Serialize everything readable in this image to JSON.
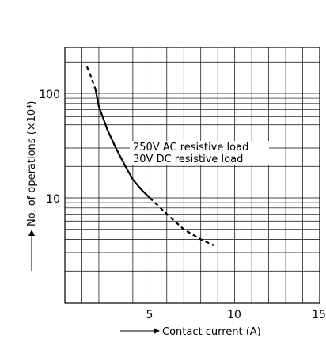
{
  "chart_data": {
    "type": "line",
    "xlabel": "Contact current (A)",
    "ylabel": "No. of operations (×10⁴)",
    "xlim": [
      0,
      15
    ],
    "ylim": [
      1,
      200
    ],
    "yscale": "log",
    "x_ticks": [
      5,
      10,
      15
    ],
    "x_tick_labels": [
      "5",
      "10",
      "15"
    ],
    "y_ticks": [
      10,
      100
    ],
    "y_tick_labels": [
      "10",
      "100"
    ],
    "grid": true,
    "series": [
      {
        "name": "250V AC resistive load",
        "style": "solid",
        "x": [
          1.8,
          2.0,
          2.5,
          3.0,
          3.5,
          4.0,
          4.5,
          5.0
        ],
        "y": [
          110,
          75,
          45,
          30,
          21,
          15,
          12,
          10
        ]
      },
      {
        "name": "30V DC resistive load",
        "style": "dashed",
        "x": [
          1.3,
          1.5,
          1.8,
          5.0,
          6.0,
          7.0,
          8.0,
          8.8
        ],
        "y": [
          180,
          150,
          110,
          10,
          7,
          5,
          4,
          3.5
        ]
      }
    ],
    "annotation_lines": [
      "250V AC resistive load",
      "30V DC resistive load"
    ]
  }
}
